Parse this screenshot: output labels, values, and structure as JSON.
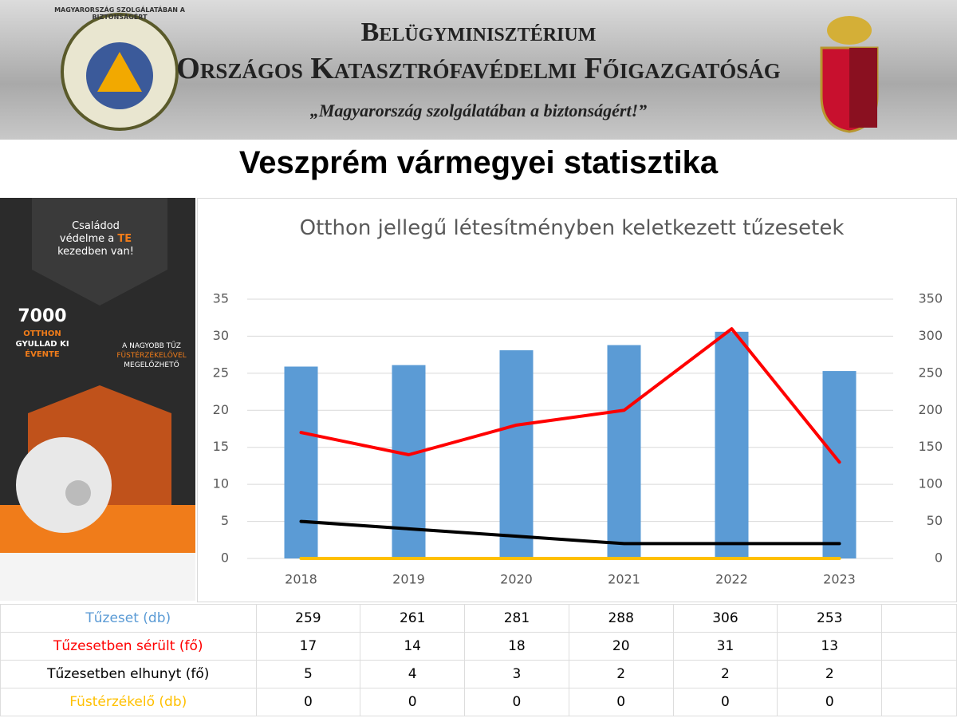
{
  "header": {
    "ministry": "Belügyminisztérium",
    "directorate": "Országos Katasztrófavédelmi Főigazgatóság",
    "motto": "„Magyarország szolgálatában a biztonságért!”",
    "logo_ring": "MAGYARORSZÁG SZOLGÁLATÁBAN A BIZTONSÁGÉRT"
  },
  "slide_title": "Veszprém vármegyei statisztika",
  "poster": {
    "line1": "Családod",
    "line2": "védelme a",
    "line2_em": "TE",
    "line3": "kezedben van!",
    "big": "7000",
    "l4": "OTTHON",
    "l5": "GYULLAD KI",
    "l6": "ÉVENTE",
    "r1": "A NAGYOBB TŰZ",
    "r2": "FÜSTÉRZÉKELŐVEL",
    "r3": "MEGELŐZHETŐ"
  },
  "chart_data": {
    "type": "combo",
    "title": "Otthon jellegű létesítményben keletkezett tűzesetek",
    "categories": [
      "2018",
      "2019",
      "2020",
      "2021",
      "2022",
      "2023"
    ],
    "ylim": [
      0,
      35
    ],
    "yticks": [
      0,
      5,
      10,
      15,
      20,
      25,
      30,
      35
    ],
    "y2lim": [
      0,
      350
    ],
    "y2ticks": [
      0,
      50,
      100,
      150,
      200,
      250,
      300,
      350
    ],
    "grid": true,
    "series": [
      {
        "name": "Tűzeset (db)",
        "type": "bar",
        "axis": "y2",
        "color": "#5b9bd5",
        "values": [
          259,
          261,
          281,
          288,
          306,
          253
        ]
      },
      {
        "name": "Tűzesetben sérült (fő)",
        "type": "line",
        "color": "#ff0000",
        "values": [
          17,
          14,
          18,
          20,
          31,
          13
        ]
      },
      {
        "name": "Tűzesetben elhunyt (fő)",
        "type": "line",
        "color": "#000000",
        "values": [
          5,
          4,
          3,
          2,
          2,
          2
        ]
      },
      {
        "name": "Füstérzékelő (db)",
        "type": "line",
        "color": "#ffc000",
        "values": [
          0,
          0,
          0,
          0,
          0,
          0
        ]
      }
    ]
  }
}
